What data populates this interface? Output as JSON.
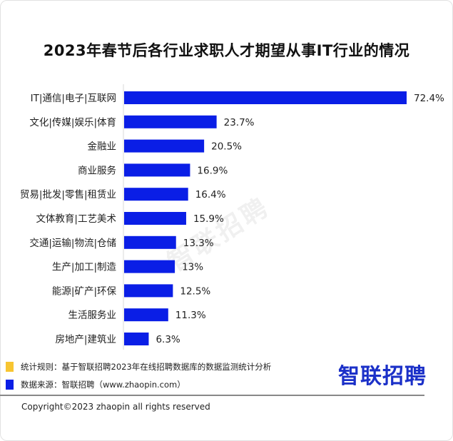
{
  "chart_data": {
    "type": "bar",
    "orientation": "horizontal",
    "title": "2023年春节后各行业求职人才期望从事IT行业的情况",
    "categories": [
      "IT|通信|电子|互联网",
      "文化|传媒|娱乐|体育",
      "金融业",
      "商业服务",
      "贸易|批发|零售|租赁业",
      "文体教育|工艺美术",
      "交通|运输|物流|仓储",
      "生产|加工|制造",
      "能源|矿产|环保",
      "生活服务业",
      "房地产|建筑业"
    ],
    "values": [
      72.4,
      23.7,
      20.5,
      16.9,
      16.4,
      15.9,
      13.3,
      13,
      12.5,
      11.3,
      6.3
    ],
    "value_labels": [
      "72.4%",
      "23.7%",
      "20.5%",
      "16.9%",
      "16.4%",
      "15.9%",
      "13.3%",
      "13%",
      "12.5%",
      "11.3%",
      "6.3%"
    ],
    "unit": "%",
    "xlim": [
      0,
      80
    ],
    "grid": false,
    "bar_color": "#0a1ee6"
  },
  "watermark": "智联招聘",
  "footer": {
    "rule_label": "统计规则：基于智联招聘2023年在线招聘数据库的数据监测统计分析",
    "source_label": "数据来源：智联招聘（www.zhaopin.com）",
    "logo": "智联招聘",
    "copyright": "Copyright©2023 zhaopin all rights reserved",
    "rule_color": "#f7c531",
    "source_color": "#0a1ee6"
  }
}
